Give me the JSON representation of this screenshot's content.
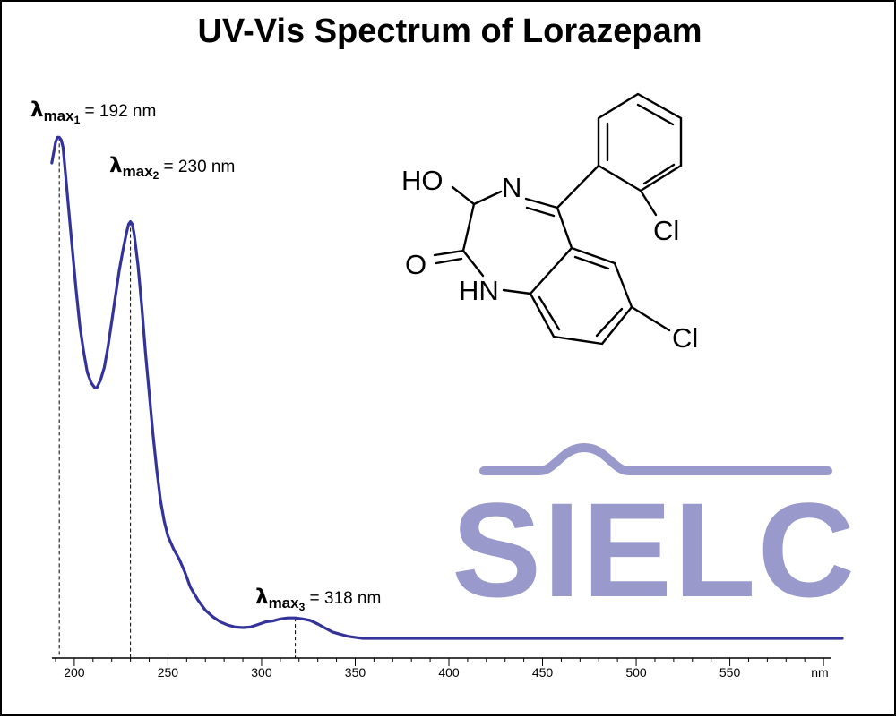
{
  "chart_data": {
    "type": "line",
    "title": "UV-Vis Spectrum of Lorazepam",
    "xlabel": "",
    "ylabel": "",
    "x_unit": "nm",
    "xlim": [
      190,
      610
    ],
    "x_ticks": [
      200,
      250,
      300,
      350,
      400,
      450,
      500,
      550
    ],
    "y_axis_shown": false,
    "grid": false,
    "series": [
      {
        "color": "#333399",
        "x": [
          188,
          190,
          191,
          192,
          193,
          194,
          195,
          197,
          199,
          201,
          203,
          205,
          207,
          209,
          210,
          211,
          212,
          214,
          216,
          218,
          220,
          222,
          224,
          226,
          228,
          229,
          230,
          231,
          232,
          234,
          236,
          238,
          240,
          242,
          244,
          246,
          248,
          250,
          253,
          256,
          259,
          262,
          266,
          270,
          274,
          278,
          282,
          286,
          290,
          294,
          298,
          302,
          306,
          310,
          314,
          318,
          322,
          326,
          330,
          334,
          338,
          342,
          346,
          350,
          354,
          360,
          380,
          400,
          450,
          500,
          550,
          600,
          610
        ],
        "y": [
          0.93,
          0.97,
          0.98,
          0.98,
          0.975,
          0.96,
          0.92,
          0.84,
          0.76,
          0.68,
          0.61,
          0.56,
          0.52,
          0.5,
          0.495,
          0.49,
          0.49,
          0.505,
          0.53,
          0.57,
          0.62,
          0.67,
          0.72,
          0.76,
          0.795,
          0.81,
          0.815,
          0.81,
          0.79,
          0.73,
          0.65,
          0.56,
          0.48,
          0.4,
          0.33,
          0.27,
          0.23,
          0.2,
          0.175,
          0.155,
          0.13,
          0.1,
          0.075,
          0.055,
          0.042,
          0.032,
          0.026,
          0.022,
          0.021,
          0.022,
          0.027,
          0.032,
          0.034,
          0.038,
          0.04,
          0.04,
          0.038,
          0.035,
          0.028,
          0.02,
          0.012,
          0.008,
          0.004,
          0.002,
          0.0,
          0.0,
          0.0,
          0.0,
          0.0,
          0.0,
          0.0,
          0.0,
          0.0
        ]
      }
    ],
    "annotations": [
      {
        "label": "λ",
        "sub": "max",
        "index": "1",
        "value_text": " = 192 nm",
        "x": 192,
        "y": 0.98
      },
      {
        "label": "λ",
        "sub": "max",
        "index": "2",
        "value_text": " = 230 nm",
        "x": 230,
        "y": 0.815
      },
      {
        "label": "λ",
        "sub": "max",
        "index": "3",
        "value_text": " = 318 nm",
        "x": 318,
        "y": 0.04
      }
    ]
  },
  "structure": {
    "labels": {
      "oh": "HO",
      "n": "N",
      "o": "O",
      "hn": "HN",
      "cl_top": "Cl",
      "cl_bottom": "Cl"
    }
  },
  "watermark": {
    "text": "SIELC",
    "color": "#9999cc"
  }
}
